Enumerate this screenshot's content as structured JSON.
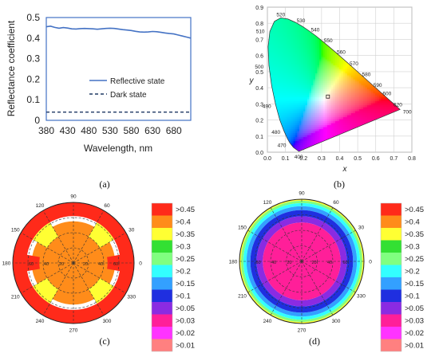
{
  "chart_data": [
    {
      "panel": "(a)",
      "type": "line",
      "xlabel": "Wavelength, nm",
      "ylabel": "Reflectance coefficient",
      "xlim": [
        380,
        720
      ],
      "ylim": [
        0,
        0.5
      ],
      "x_ticks": [
        380,
        430,
        480,
        530,
        580,
        630,
        680
      ],
      "y_ticks": [
        0,
        0.1,
        0.2,
        0.3,
        0.4,
        0.5
      ],
      "legend": "right-middle",
      "series": [
        {
          "name": "Reflective state",
          "color": "#4472c4",
          "style": "solid",
          "x": [
            380,
            390,
            400,
            410,
            420,
            430,
            440,
            450,
            460,
            470,
            480,
            490,
            500,
            510,
            520,
            530,
            540,
            550,
            560,
            570,
            580,
            590,
            600,
            610,
            620,
            630,
            640,
            650,
            660,
            670,
            680,
            690,
            700,
            710,
            720
          ],
          "y": [
            0.455,
            0.458,
            0.452,
            0.448,
            0.451,
            0.449,
            0.445,
            0.444,
            0.446,
            0.447,
            0.446,
            0.445,
            0.443,
            0.445,
            0.447,
            0.448,
            0.447,
            0.444,
            0.441,
            0.439,
            0.437,
            0.433,
            0.43,
            0.429,
            0.43,
            0.432,
            0.431,
            0.428,
            0.425,
            0.422,
            0.42,
            0.415,
            0.41,
            0.405,
            0.4
          ]
        },
        {
          "name": "Dark state",
          "color": "#1f3864",
          "style": "dashed",
          "x": [
            380,
            720
          ],
          "y": [
            0.04,
            0.04
          ]
        }
      ]
    },
    {
      "panel": "(b)",
      "type": "scatter",
      "xlabel": "x",
      "ylabel": "y",
      "xlim": [
        0,
        0.8
      ],
      "ylim": [
        0,
        0.9
      ],
      "x_ticks": [
        "0.0",
        "0.1",
        "0.2",
        "0.3",
        "0.4",
        "0.5",
        "0.6",
        "0.7",
        "0.8"
      ],
      "y_ticks": [
        "0.0",
        "0.1",
        "0.2",
        "0.3",
        "0.4",
        "0.5",
        "0.6",
        "0.7",
        "0.8",
        "0.9"
      ],
      "grid": true,
      "locus_labels": [
        {
          "label": "400",
          "x": 0.1733,
          "y": 0.0048
        },
        {
          "label": "470",
          "x": 0.1241,
          "y": 0.0578
        },
        {
          "label": "480",
          "x": 0.0913,
          "y": 0.1327
        },
        {
          "label": "490",
          "x": 0.0454,
          "y": 0.295
        },
        {
          "label": "500",
          "x": 0.0082,
          "y": 0.5384
        },
        {
          "label": "510",
          "x": 0.0139,
          "y": 0.7502
        },
        {
          "label": "520",
          "x": 0.0743,
          "y": 0.8338
        },
        {
          "label": "530",
          "x": 0.1547,
          "y": 0.8059
        },
        {
          "label": "540",
          "x": 0.2296,
          "y": 0.7543
        },
        {
          "label": "550",
          "x": 0.3016,
          "y": 0.6923
        },
        {
          "label": "560",
          "x": 0.3731,
          "y": 0.6245
        },
        {
          "label": "570",
          "x": 0.4441,
          "y": 0.5547
        },
        {
          "label": "580",
          "x": 0.5125,
          "y": 0.4866
        },
        {
          "label": "590",
          "x": 0.5752,
          "y": 0.4242
        },
        {
          "label": "600",
          "x": 0.627,
          "y": 0.3725
        },
        {
          "label": "620",
          "x": 0.6915,
          "y": 0.3083
        },
        {
          "label": "700",
          "x": 0.7347,
          "y": 0.2653
        }
      ],
      "marker": {
        "x": 0.335,
        "y": 0.345
      }
    },
    {
      "panel": "(c)",
      "type": "heatmap",
      "projection": "polar",
      "angle_ticks": [
        "0",
        "30",
        "60",
        "90",
        "120",
        "150",
        "180",
        "210",
        "240",
        "270",
        "300",
        "330"
      ],
      "radial_ticks": [
        "20",
        "40",
        "60"
      ],
      "legend_levels": [
        ">0.45",
        ">0.4",
        ">0.35",
        ">0.3",
        ">0.25",
        ">0.2",
        ">0.15",
        ">0.1",
        ">0.05",
        ">0.03",
        ">0.02",
        ">0.01"
      ],
      "legend_colors": [
        "#ff2a1a",
        "#ff8c1a",
        "#ffff33",
        "#33e033",
        "#80ff80",
        "#33ffff",
        "#33a0ff",
        "#1f2fe0",
        "#8a2be2",
        "#ff1f99",
        "#ff33ff",
        "#ff8080"
      ],
      "regions": [
        {
          "level": ">0.4",
          "r_min": 0,
          "r_max": 55,
          "theta_min": 0,
          "theta_max": 360
        },
        {
          "level": ">0.35",
          "r_min": 40,
          "r_max": 62,
          "theta_min": 30,
          "theta_max": 60
        },
        {
          "level": ">0.35",
          "r_min": 40,
          "r_max": 62,
          "theta_min": 120,
          "theta_max": 150
        },
        {
          "level": ">0.35",
          "r_min": 40,
          "r_max": 62,
          "theta_min": 210,
          "theta_max": 240
        },
        {
          "level": ">0.35",
          "r_min": 40,
          "r_max": 62,
          "theta_min": 300,
          "theta_max": 330
        },
        {
          "level": ">0.45",
          "r_min": 62,
          "r_max": 80,
          "theta_min": 0,
          "theta_max": 360
        },
        {
          "level": ">0.45",
          "r_min": 45,
          "r_max": 80,
          "theta_min": 350,
          "theta_max": 370
        },
        {
          "level": ">0.45",
          "r_min": 45,
          "r_max": 80,
          "theta_min": 170,
          "theta_max": 190
        }
      ]
    },
    {
      "panel": "(d)",
      "type": "heatmap",
      "projection": "polar",
      "angle_ticks": [
        "0",
        "30",
        "60",
        "90",
        "120",
        "150",
        "180",
        "210",
        "240",
        "270",
        "300",
        "330"
      ],
      "radial_ticks": [
        "20",
        "40",
        "60"
      ],
      "legend_levels": [
        ">0.45",
        ">0.4",
        ">0.35",
        ">0.3",
        ">0.25",
        ">0.2",
        ">0.15",
        ">0.1",
        ">0.05",
        ">0.03",
        ">0.02",
        ">0.01"
      ],
      "legend_colors": [
        "#ff2a1a",
        "#ff8c1a",
        "#ffff33",
        "#33e033",
        "#80ff80",
        "#33ffff",
        "#33a0ff",
        "#1f2fe0",
        "#8a2be2",
        "#ff1f99",
        "#ff33ff",
        "#ff8080"
      ],
      "rings": [
        {
          "level": ">0.35",
          "r_min": 78,
          "r_max": 80
        },
        {
          "level": ">0.25",
          "r_min": 75,
          "r_max": 78
        },
        {
          "level": ">0.2",
          "r_min": 71,
          "r_max": 75
        },
        {
          "level": ">0.15",
          "r_min": 66,
          "r_max": 71
        },
        {
          "level": ">0.1",
          "r_min": 58,
          "r_max": 66
        },
        {
          "level": ">0.05",
          "r_min": 50,
          "r_max": 58
        },
        {
          "level": ">0.03",
          "r_min": 0,
          "r_max": 50
        }
      ]
    }
  ],
  "captions": [
    "(a)",
    "(b)",
    "(c)",
    "(d)"
  ]
}
